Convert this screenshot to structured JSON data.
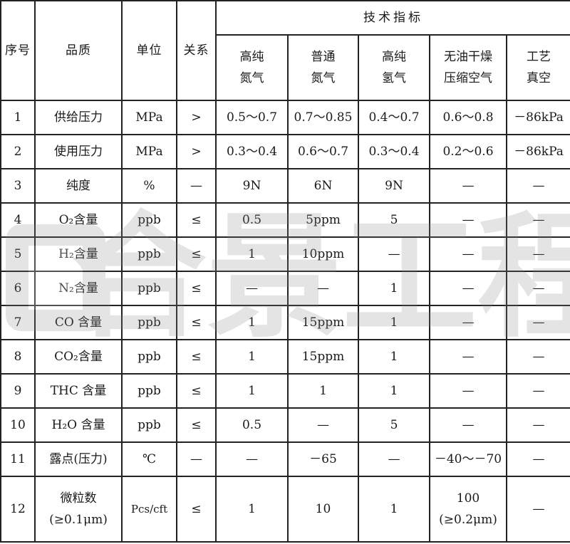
{
  "header": {
    "seq": "序号",
    "quality": "品质",
    "unit": "单位",
    "relation": "关系",
    "tech_spec": "技术指标",
    "gases": [
      [
        "高纯",
        "氮气"
      ],
      [
        "普通",
        "氮气"
      ],
      [
        "高纯",
        "氢气"
      ],
      [
        "无油干燥",
        "压缩空气"
      ],
      [
        "工艺",
        "真空"
      ]
    ]
  },
  "rows": [
    {
      "no": "1",
      "quality": "供给压力",
      "unit": "MPa",
      "rel": ">",
      "vals": [
        "0.5～0.7",
        "0.7～0.85",
        "0.4～0.7",
        "0.6～0.8",
        "－86kPa"
      ]
    },
    {
      "no": "2",
      "quality": "使用压力",
      "unit": "MPa",
      "rel": ">",
      "vals": [
        "0.3～0.4",
        "0.6～0.7",
        "0.3～0.4",
        "0.2～0.6",
        "－86kPa"
      ]
    },
    {
      "no": "3",
      "quality": "纯度",
      "unit": "%",
      "rel": "—",
      "vals": [
        "9N",
        "6N",
        "9N",
        "—",
        "—"
      ]
    },
    {
      "no": "4",
      "quality": "O₂含量",
      "unit": "ppb",
      "rel": "≤",
      "vals": [
        "0.5",
        "5ppm",
        "5",
        "—",
        "—"
      ]
    },
    {
      "no": "5",
      "quality": "H₂含量",
      "unit": "ppb",
      "rel": "≤",
      "vals": [
        "1",
        "10ppm",
        "—",
        "—",
        "—"
      ]
    },
    {
      "no": "6",
      "quality": "N₂含量",
      "unit": "ppb",
      "rel": "≤",
      "vals": [
        "—",
        "—",
        "1",
        "—",
        "—"
      ]
    },
    {
      "no": "7",
      "quality": "CO 含量",
      "unit": "ppb",
      "rel": "≤",
      "vals": [
        "1",
        "15ppm",
        "1",
        "—",
        "—"
      ]
    },
    {
      "no": "8",
      "quality": "CO₂含量",
      "unit": "ppb",
      "rel": "≤",
      "vals": [
        "1",
        "15ppm",
        "1",
        "—",
        "—"
      ]
    },
    {
      "no": "9",
      "quality": "THC 含量",
      "unit": "ppb",
      "rel": "≤",
      "vals": [
        "1",
        "1",
        "1",
        "—",
        "—"
      ]
    },
    {
      "no": "10",
      "quality": "H₂O 含量",
      "unit": "ppb",
      "rel": "≤",
      "vals": [
        "0.5",
        "—",
        "5",
        "—",
        "—"
      ]
    },
    {
      "no": "11",
      "quality": "露点(压力)",
      "unit": "℃",
      "rel": "—",
      "vals": [
        "—",
        "－65",
        "—",
        "－40～－70",
        "—"
      ]
    },
    {
      "no": "12",
      "quality": [
        "微粒数",
        "(≥0.1μm)"
      ],
      "unit": "Pcs/cft",
      "rel": "≤",
      "vals": [
        "1",
        "10",
        "1",
        [
          "100",
          "(≥0.2μm)"
        ],
        "—"
      ]
    }
  ],
  "watermark": "合景工程"
}
